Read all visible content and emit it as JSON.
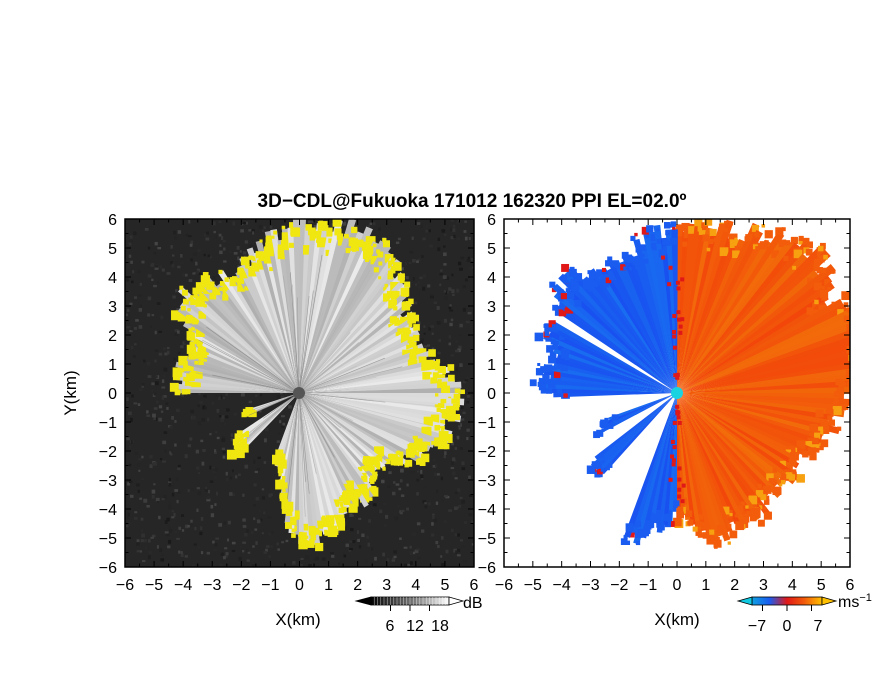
{
  "title": "3D−CDL@Fukuoka 171012 162320 PPI EL=02.0º",
  "chart_data": [
    {
      "type": "heatmap",
      "name": "reflectivity-ppi",
      "xlabel": "X(km)",
      "ylabel": "Y(km)",
      "xlim": [
        -6,
        6
      ],
      "ylim": [
        -6,
        6
      ],
      "xticks": [
        "−6",
        "−5",
        "−4",
        "−3",
        "−2",
        "−1",
        "0",
        "1",
        "2",
        "3",
        "4",
        "5",
        "6"
      ],
      "yticks": [
        "6",
        "5",
        "4",
        "3",
        "2",
        "1",
        "0",
        "−1",
        "−2",
        "−3",
        "−4",
        "−5",
        "−6"
      ],
      "background_color": "#262626",
      "highlight_color": "#f0e610",
      "blocked_sectors_deg": [
        [
          200,
          225
        ],
        [
          236,
          246
        ],
        [
          252,
          270
        ]
      ],
      "colorbar": {
        "unit": "dB",
        "ticks": [
          "6",
          "12",
          "18"
        ],
        "range": [
          0,
          24
        ]
      }
    },
    {
      "type": "heatmap",
      "name": "doppler-velocity-ppi",
      "xlabel": "X(km)",
      "xlim": [
        -6,
        6
      ],
      "ylim": [
        -6,
        6
      ],
      "xticks": [
        "−6",
        "−5",
        "−4",
        "−3",
        "−2",
        "−1",
        "0",
        "1",
        "2",
        "3",
        "4",
        "5",
        "6"
      ],
      "yticks": [
        "6",
        "5",
        "4",
        "3",
        "2",
        "1",
        "0",
        "−1",
        "−2",
        "−3",
        "−4",
        "−5",
        "−6"
      ],
      "approaching_color": "#1a5cf0",
      "receding_color": "#f25c0a",
      "center_color": "#19d3e0",
      "colorbar": {
        "unit": "ms",
        "unit_exp": "−1",
        "ticks": [
          "−7",
          "0",
          "7"
        ],
        "range": [
          -10,
          10
        ]
      }
    }
  ]
}
